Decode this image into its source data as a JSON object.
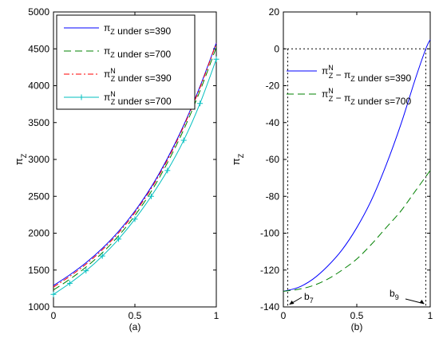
{
  "chart_data": [
    {
      "type": "line",
      "panel_label": "(a)",
      "ylabel": "πZ",
      "xlim": [
        0,
        1
      ],
      "ylim": [
        1000,
        5000
      ],
      "x_ticks": [
        0,
        0.5,
        1
      ],
      "y_ticks": [
        1000,
        1500,
        2000,
        2500,
        3000,
        3500,
        4000,
        4500,
        5000
      ],
      "legend_position": "top-left",
      "series": [
        {
          "name": "πZ under s=390",
          "color": "#0000ff",
          "style": "solid",
          "x": [
            0,
            0.1,
            0.2,
            0.3,
            0.4,
            0.5,
            0.6,
            0.7,
            0.8,
            0.9,
            1.0
          ],
          "y": [
            1290,
            1435,
            1600,
            1795,
            2025,
            2300,
            2625,
            3015,
            3465,
            3990,
            4580
          ]
        },
        {
          "name": "πZ under s=700",
          "color": "#008000",
          "style": "dash",
          "x": [
            0,
            0.1,
            0.2,
            0.3,
            0.4,
            0.5,
            0.6,
            0.7,
            0.8,
            0.9,
            1.0
          ],
          "y": [
            1230,
            1375,
            1540,
            1735,
            1965,
            2240,
            2565,
            2955,
            3405,
            3930,
            4520
          ]
        },
        {
          "name": "πZN under s=390",
          "color": "#ff0000",
          "style": "dashdot",
          "x": [
            0,
            0.1,
            0.2,
            0.3,
            0.4,
            0.5,
            0.6,
            0.7,
            0.8,
            0.9,
            1.0
          ],
          "y": [
            1270,
            1415,
            1580,
            1775,
            2005,
            2280,
            2605,
            2995,
            3450,
            3975,
            4575
          ]
        },
        {
          "name": "πZN under s=700",
          "color": "#00bfbf",
          "style": "solid-plus",
          "x": [
            0,
            0.1,
            0.2,
            0.3,
            0.4,
            0.5,
            0.6,
            0.7,
            0.8,
            0.9,
            1.0
          ],
          "y": [
            1170,
            1320,
            1490,
            1690,
            1920,
            2190,
            2500,
            2850,
            3260,
            3760,
            4360
          ]
        }
      ]
    },
    {
      "type": "line",
      "panel_label": "(b)",
      "ylabel": "πZ",
      "xlim": [
        0,
        1
      ],
      "ylim": [
        -140,
        20
      ],
      "x_ticks": [
        0,
        0.5,
        1
      ],
      "y_ticks": [
        -140,
        -120,
        -100,
        -80,
        -60,
        -40,
        -20,
        0,
        20
      ],
      "legend_position": "top-left",
      "zero_line": true,
      "series": [
        {
          "name": "πZN − πZ under s=390",
          "color": "#0000ff",
          "style": "solid",
          "x": [
            0,
            0.1,
            0.2,
            0.3,
            0.4,
            0.5,
            0.6,
            0.7,
            0.8,
            0.9,
            0.97,
            1.0
          ],
          "y": [
            -131.5,
            -129.5,
            -125,
            -118,
            -109,
            -97,
            -82,
            -63,
            -41,
            -16,
            0,
            5
          ]
        },
        {
          "name": "πZN − πZ under s=700",
          "color": "#008000",
          "style": "dash",
          "x": [
            0,
            0.1,
            0.2,
            0.3,
            0.4,
            0.5,
            0.6,
            0.7,
            0.8,
            0.9,
            1.0
          ],
          "y": [
            -131.5,
            -130.5,
            -128.5,
            -125,
            -120,
            -114,
            -106,
            -97,
            -88,
            -77,
            -66
          ]
        }
      ],
      "annotations": [
        {
          "text": "b7",
          "x": 0.03
        },
        {
          "text": "b9",
          "x": 0.97
        }
      ]
    }
  ]
}
